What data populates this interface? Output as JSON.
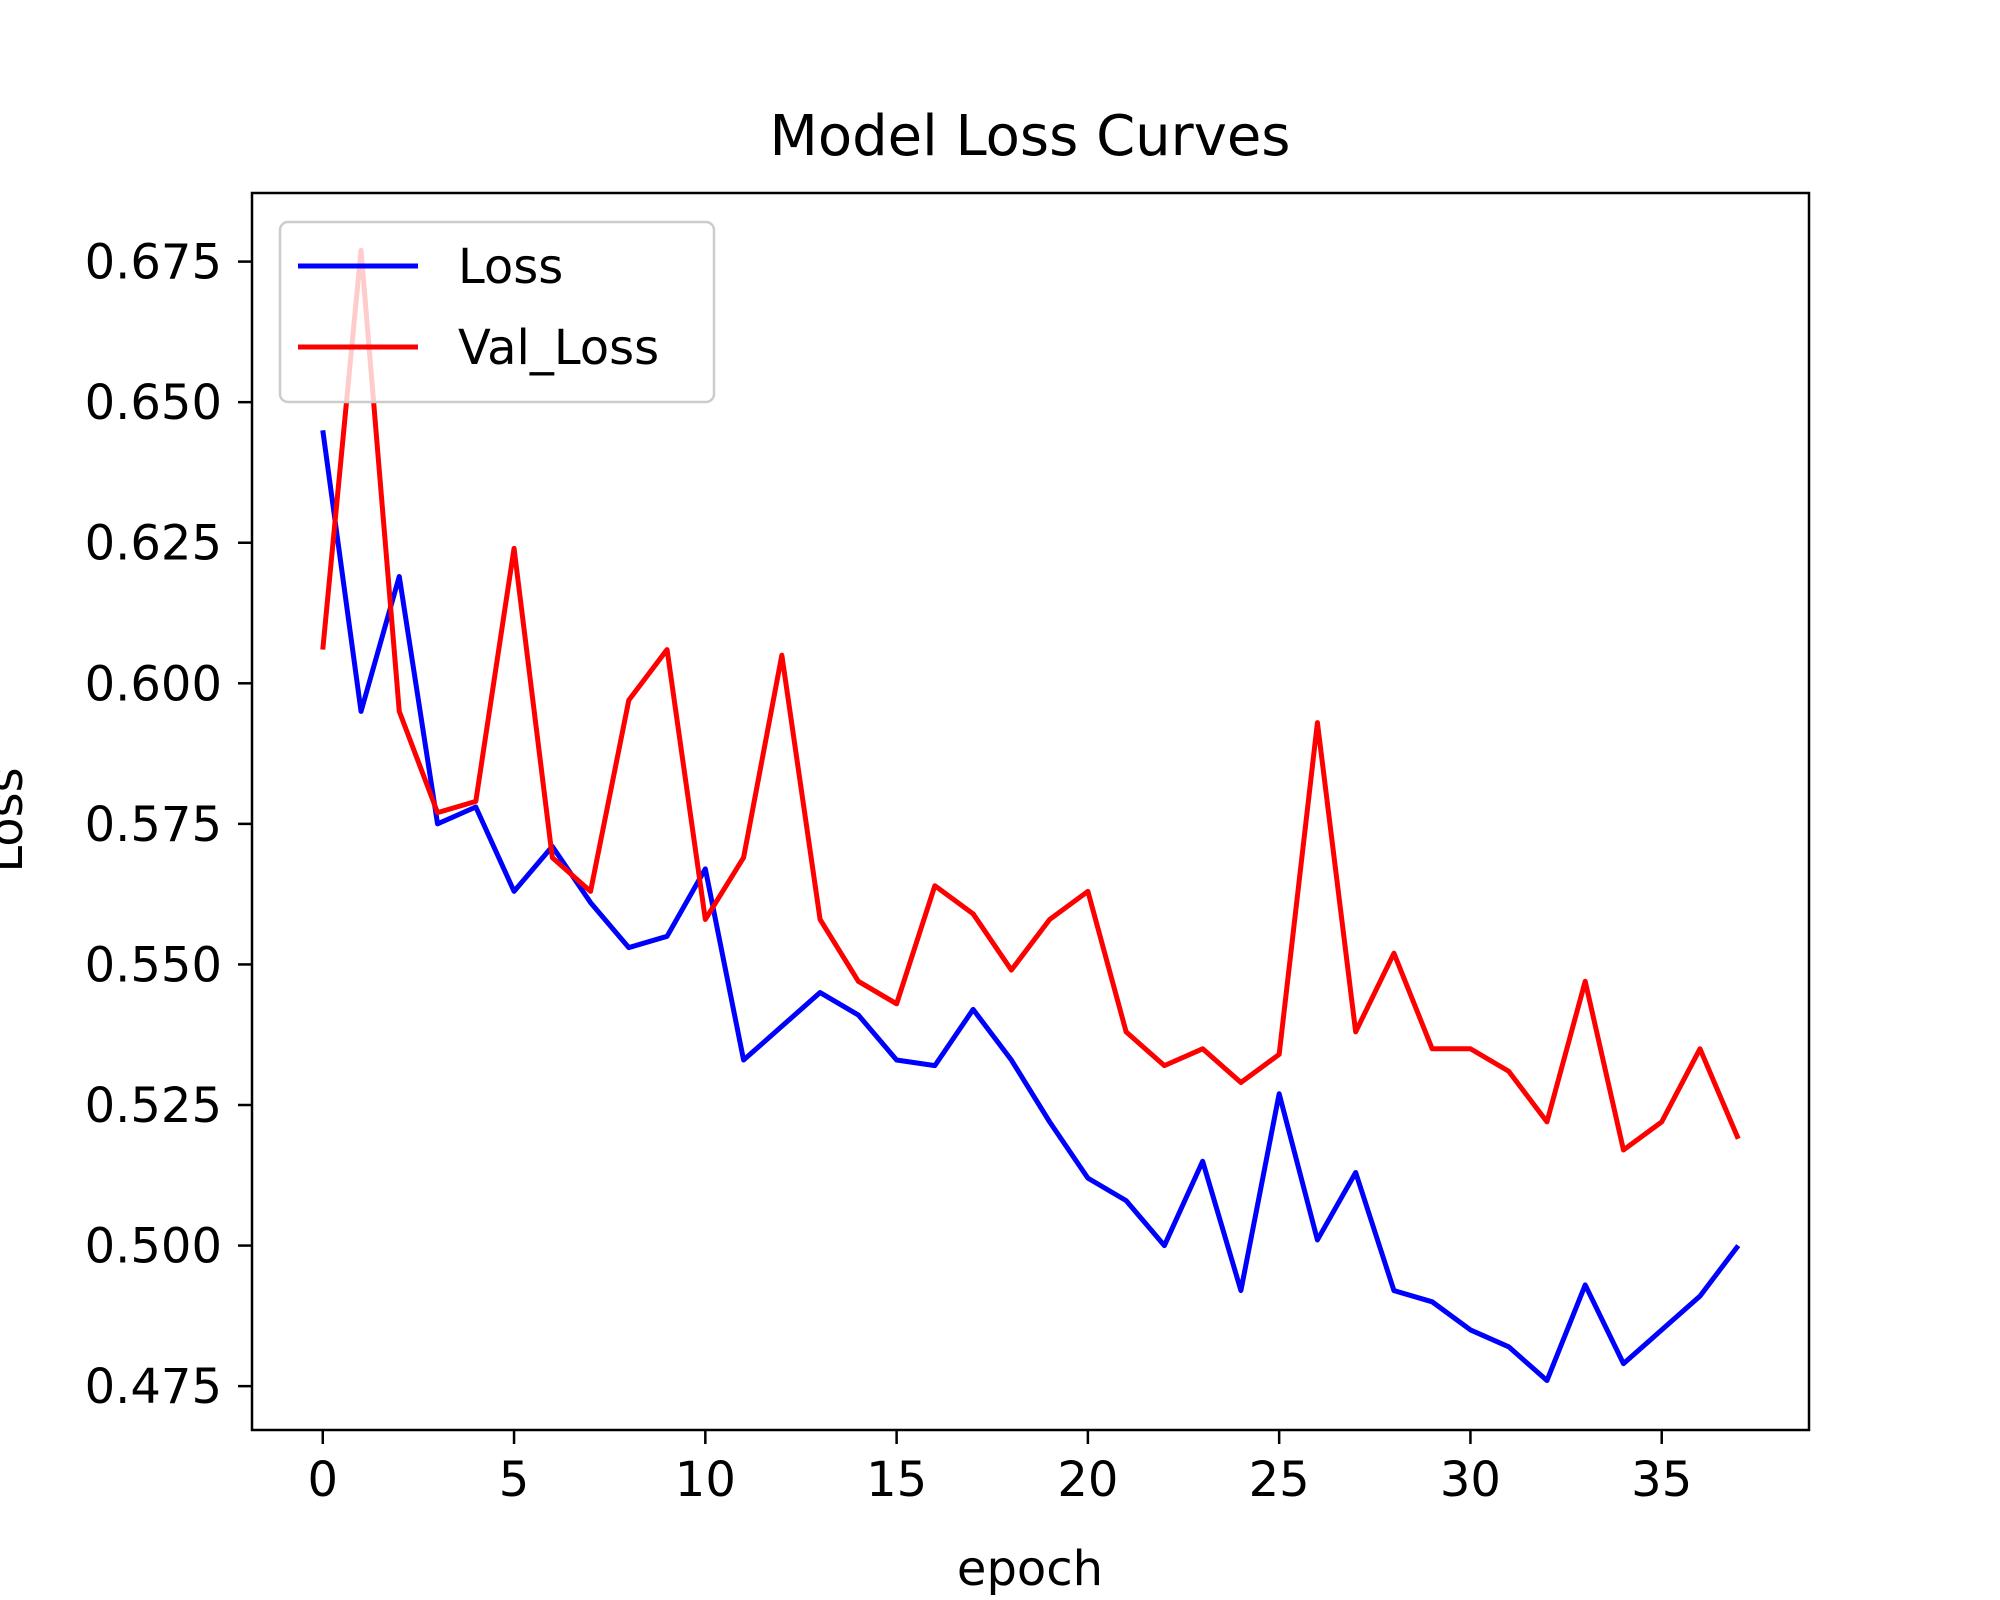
{
  "chart_data": {
    "type": "line",
    "title": "Model Loss Curves",
    "xlabel": "epoch",
    "ylabel": "Loss",
    "xlim": [
      -1.85,
      38.85
    ],
    "ylim": [
      0.4672,
      0.6872
    ],
    "xticks": [
      0,
      5,
      10,
      15,
      20,
      25,
      30,
      35
    ],
    "xtick_labels": [
      "0",
      "5",
      "10",
      "15",
      "20",
      "25",
      "30",
      "35"
    ],
    "yticks": [
      0.475,
      0.5,
      0.525,
      0.55,
      0.575,
      0.6,
      0.625,
      0.65,
      0.675
    ],
    "ytick_labels": [
      "0.475",
      "0.500",
      "0.525",
      "0.550",
      "0.575",
      "0.600",
      "0.625",
      "0.650",
      "0.675"
    ],
    "grid": false,
    "legend_position": "upper-left",
    "x": [
      0,
      1,
      2,
      3,
      4,
      5,
      6,
      7,
      8,
      9,
      10,
      11,
      12,
      13,
      14,
      15,
      16,
      17,
      18,
      19,
      20,
      21,
      22,
      23,
      24,
      25,
      26,
      27,
      28,
      29,
      30,
      31,
      32,
      33,
      34,
      35,
      36,
      37
    ],
    "series": [
      {
        "name": "Loss",
        "color": "#0000ff",
        "values": [
          0.645,
          0.595,
          0.619,
          0.575,
          0.578,
          0.563,
          0.571,
          0.561,
          0.553,
          0.555,
          0.567,
          0.533,
          0.539,
          0.545,
          0.541,
          0.533,
          0.532,
          0.542,
          0.533,
          0.522,
          0.512,
          0.508,
          0.5,
          0.515,
          0.492,
          0.527,
          0.501,
          0.513,
          0.492,
          0.49,
          0.485,
          0.482,
          0.476,
          0.493,
          0.479,
          0.485,
          0.491,
          0.5
        ]
      },
      {
        "name": "Val_Loss",
        "color": "#ff0000",
        "values": [
          0.606,
          0.677,
          0.595,
          0.577,
          0.579,
          0.624,
          0.569,
          0.563,
          0.597,
          0.606,
          0.558,
          0.569,
          0.605,
          0.558,
          0.547,
          0.543,
          0.564,
          0.559,
          0.549,
          0.558,
          0.563,
          0.538,
          0.532,
          0.535,
          0.529,
          0.534,
          0.593,
          0.538,
          0.552,
          0.535,
          0.535,
          0.531,
          0.522,
          0.547,
          0.517,
          0.522,
          0.535,
          0.519
        ]
      }
    ]
  }
}
